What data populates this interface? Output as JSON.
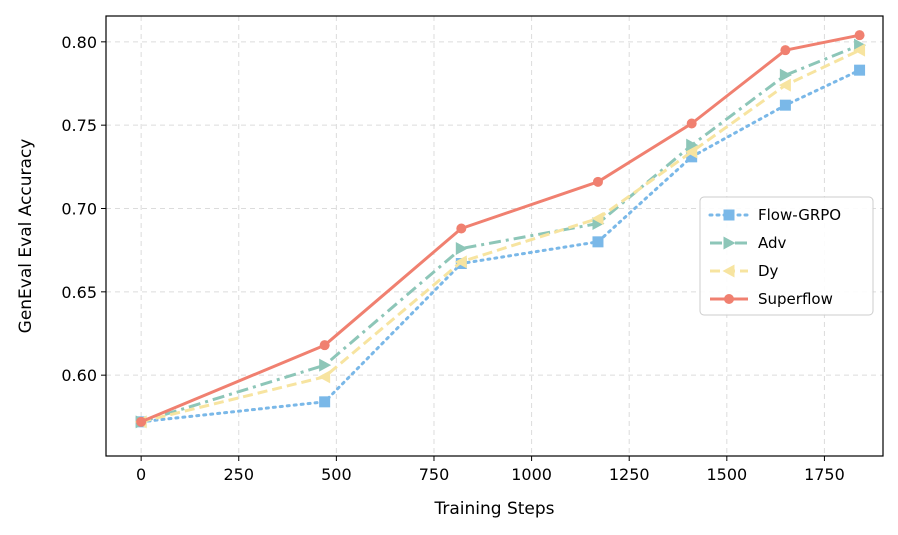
{
  "chart_data": {
    "type": "line",
    "xlabel": "Training Steps",
    "ylabel": "GenEval Eval Accuracy",
    "xlim": [
      -90,
      1900
    ],
    "ylim": [
      0.5515,
      0.8155
    ],
    "xticks": [
      0,
      250,
      500,
      750,
      1000,
      1250,
      1500,
      1750
    ],
    "yticks": [
      0.6,
      0.65,
      0.7,
      0.75,
      0.8
    ],
    "ytick_labels": [
      "0.60",
      "0.65",
      "0.70",
      "0.75",
      "0.80"
    ],
    "grid": true,
    "legend_position": "center-right",
    "series": [
      {
        "name": "Flow-GRPO",
        "color": "#7ab8e8",
        "line_style": "dotted",
        "marker": "square",
        "x": [
          0,
          470,
          820,
          1170,
          1410,
          1650,
          1840
        ],
        "y": [
          0.572,
          0.584,
          0.667,
          0.68,
          0.731,
          0.762,
          0.783
        ]
      },
      {
        "name": "Adv",
        "color": "#8dc6b8",
        "line_style": "dashdot",
        "marker": "triangle-right",
        "x": [
          0,
          470,
          820,
          1170,
          1410,
          1650,
          1840
        ],
        "y": [
          0.572,
          0.606,
          0.676,
          0.691,
          0.738,
          0.78,
          0.798
        ]
      },
      {
        "name": "Dy",
        "color": "#f7e4a0",
        "line_style": "dashed",
        "marker": "triangle-left",
        "x": [
          0,
          470,
          820,
          1170,
          1410,
          1650,
          1840
        ],
        "y": [
          0.572,
          0.599,
          0.668,
          0.694,
          0.734,
          0.774,
          0.795
        ]
      },
      {
        "name": "Superflow",
        "color": "#f08070",
        "line_style": "solid",
        "marker": "circle",
        "x": [
          0,
          470,
          820,
          1170,
          1410,
          1650,
          1840
        ],
        "y": [
          0.572,
          0.618,
          0.688,
          0.716,
          0.751,
          0.795,
          0.804
        ]
      }
    ]
  }
}
